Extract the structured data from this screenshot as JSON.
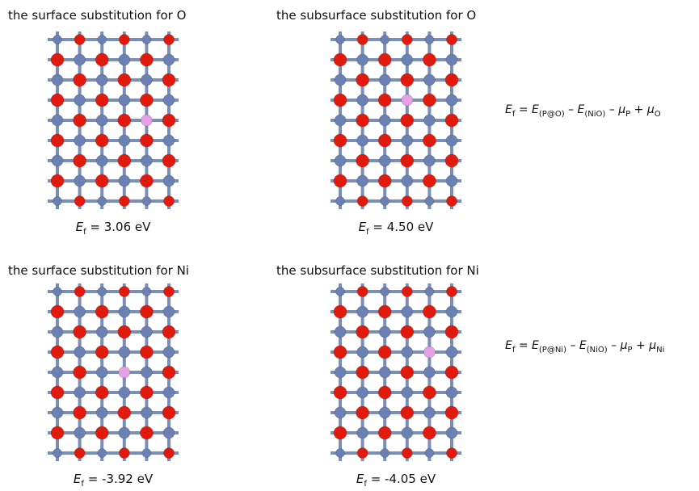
{
  "panels": [
    {
      "title": "the surface substitution for O",
      "energy": {
        "symbol": "E",
        "subscript": "f",
        "text": "= 3.06 eV"
      }
    },
    {
      "title": "the subsurface substitution for O",
      "energy": {
        "symbol": "E",
        "subscript": "f",
        "text": "= 4.50 eV"
      }
    },
    {
      "title": "the surface substitution for Ni",
      "energy": {
        "symbol": "E",
        "subscript": "f",
        "text": "= -3.92 eV"
      }
    },
    {
      "title": "the subsurface substitution for Ni",
      "energy": {
        "symbol": "E",
        "subscript": "f",
        "text": "= -4.05 eV"
      }
    }
  ],
  "formulas": [
    {
      "parts": [
        {
          "symbol": "E",
          "subscript": "f"
        },
        {
          "op": "=",
          "symbol": "E",
          "subscript": "(P@O)"
        },
        {
          "op": "–",
          "symbol": "E",
          "subscript": "(NiO)"
        },
        {
          "op": "–",
          "symbol": "μ",
          "subscript": "P"
        },
        {
          "op": "+",
          "symbol": "μ",
          "subscript": "O"
        }
      ]
    },
    {
      "parts": [
        {
          "symbol": "E",
          "subscript": "f"
        },
        {
          "op": "=",
          "symbol": "E",
          "subscript": "(P@Ni)"
        },
        {
          "op": "–",
          "symbol": "E",
          "subscript": "(NiO)"
        },
        {
          "op": "–",
          "symbol": "μ",
          "subscript": "P"
        },
        {
          "op": "+",
          "symbol": "μ",
          "subscript": "Ni"
        }
      ]
    }
  ]
}
